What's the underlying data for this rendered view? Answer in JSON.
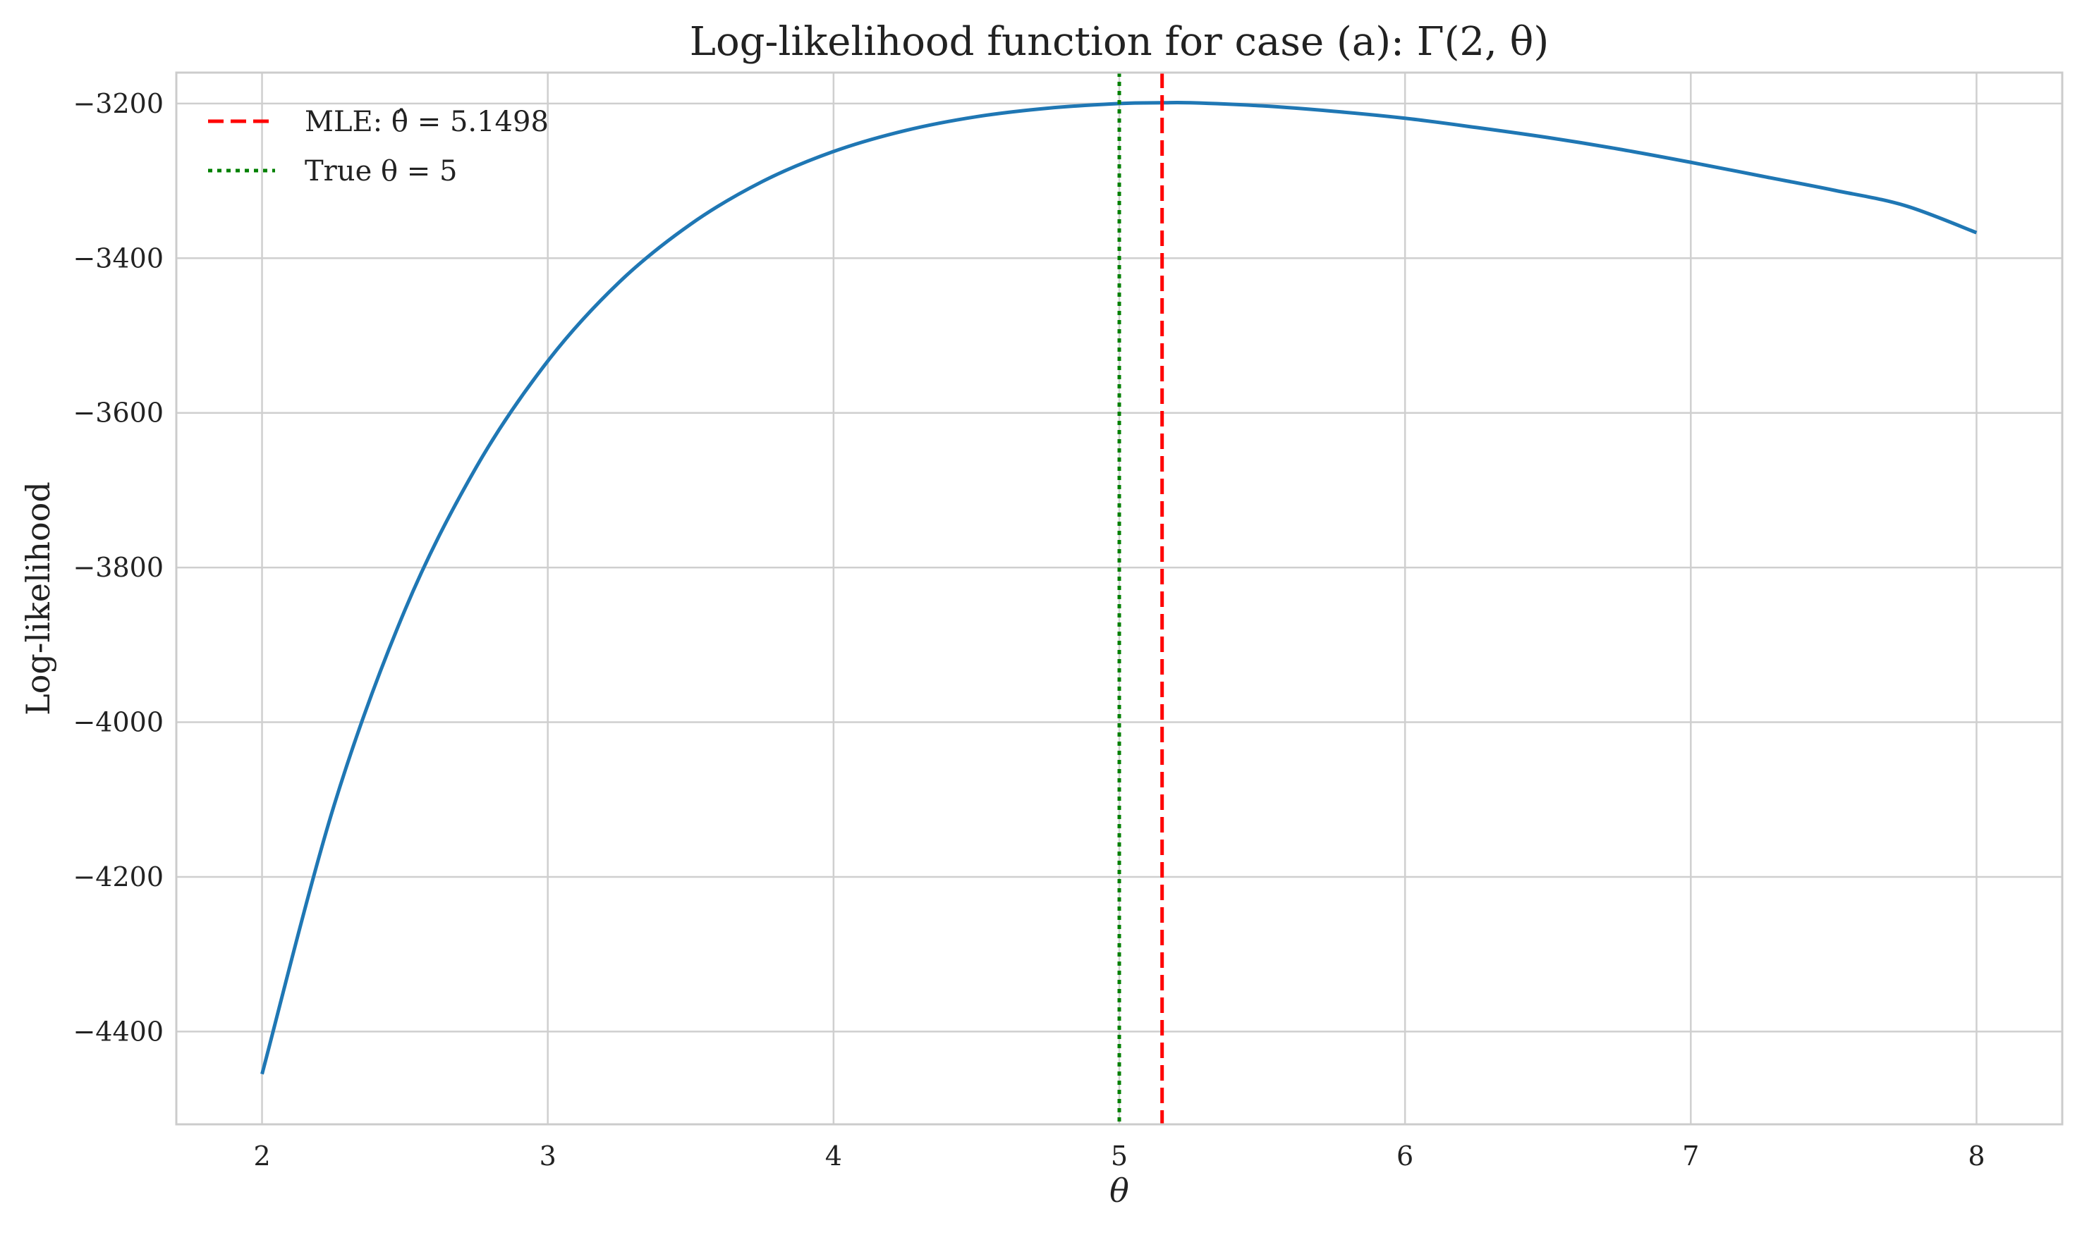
{
  "chart_data": {
    "type": "line",
    "title": "Log-likelihood function for case (a): Γ(2, θ)",
    "xlabel": "θ",
    "ylabel": "Log-likelihood",
    "xlim": [
      1.7,
      8.3
    ],
    "ylim": [
      -4520,
      -3160
    ],
    "x_ticks": [
      2,
      3,
      4,
      5,
      6,
      7,
      8
    ],
    "y_ticks": [
      -4400,
      -4200,
      -4000,
      -3800,
      -3600,
      -3400,
      -3200
    ],
    "y_tick_labels": [
      "−4400",
      "−4200",
      "−4000",
      "−3800",
      "−3600",
      "−3400",
      "−3200"
    ],
    "grid": true,
    "legend_position": "top-left",
    "series": [
      {
        "kind": "curve",
        "color": "#1f77b4",
        "x": [
          2.0,
          2.25,
          2.5,
          2.75,
          3.0,
          3.25,
          3.5,
          3.75,
          4.0,
          4.25,
          4.5,
          4.75,
          5.0,
          5.1498,
          5.25,
          5.5,
          5.75,
          6.0,
          6.25,
          6.5,
          6.75,
          7.0,
          7.25,
          7.5,
          7.75,
          8.0
        ],
        "y": [
          -4455,
          -4110,
          -3855,
          -3670,
          -3533,
          -3431,
          -3356,
          -3301,
          -3262,
          -3235,
          -3217,
          -3206,
          -3200,
          -3199,
          -3199,
          -3203,
          -3210,
          -3219,
          -3231,
          -3244,
          -3259,
          -3276,
          -3294,
          -3312,
          -3332,
          -3367
        ]
      },
      {
        "kind": "vline",
        "name": "MLE: θ̂ = 5.1498",
        "x": 5.1498,
        "color": "#ff0000",
        "style": "dashed"
      },
      {
        "kind": "vline",
        "name": "True θ = 5",
        "x": 5,
        "color": "#008000",
        "style": "dotted"
      }
    ]
  }
}
